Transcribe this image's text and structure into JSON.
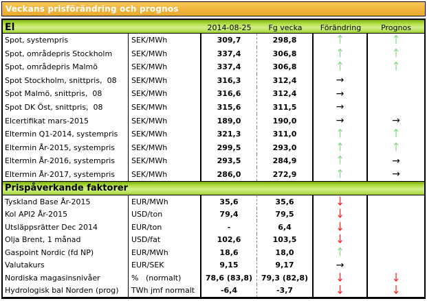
{
  "title": "Veckans prisförändring och prognos",
  "sections": [
    {
      "header": "El",
      "columns": [
        "2014-08-25",
        "Fg vecka",
        "Förändring",
        "Prognos"
      ],
      "rows": [
        {
          "label": "Spot, systempris",
          "unit": "SEK/MWh",
          "current": "309,7",
          "previous": "298,8",
          "change": "up",
          "forecast": "up"
        },
        {
          "label": "Spot, områdepris Stockholm",
          "unit": "SEK/MWh",
          "current": "337,4",
          "previous": "306,8",
          "change": "up",
          "forecast": "up"
        },
        {
          "label": "Spot, områdepris Malmö",
          "unit": "SEK/MWh",
          "current": "337,4",
          "previous": "306,8",
          "change": "up",
          "forecast": "up"
        },
        {
          "label": "Spot Stockholm, snittpris,  08",
          "unit": "SEK/MWh",
          "current": "316,3",
          "previous": "312,4",
          "change": "right",
          "forecast": "none"
        },
        {
          "label": "Spot Malmö, snittpris,  08",
          "unit": "SEK/MWh",
          "current": "316,6",
          "previous": "312,4",
          "change": "right",
          "forecast": "none"
        },
        {
          "label": "Spot DK Öst, snittpris,  08",
          "unit": "SEK/MWh",
          "current": "315,6",
          "previous": "311,5",
          "change": "right",
          "forecast": "none"
        },
        {
          "label": "Elcertifikat mars-2015",
          "unit": "SEK/MWh",
          "current": "189,0",
          "previous": "190,0",
          "change": "right",
          "forecast": "right"
        },
        {
          "label": "Eltermin Q1-2014, systempris",
          "unit": "SEK/MWh",
          "current": "321,3",
          "previous": "311,0",
          "change": "up",
          "forecast": "up"
        },
        {
          "label": "Eltermin År-2015, systempris",
          "unit": "SEK/MWh",
          "current": "299,5",
          "previous": "293,0",
          "change": "up",
          "forecast": "up"
        },
        {
          "label": "Eltermin År-2016, systempris",
          "unit": "SEK/MWh",
          "current": "293,5",
          "previous": "284,9",
          "change": "up",
          "forecast": "right"
        },
        {
          "label": "Eltermin År-2017, systempris",
          "unit": "SEK/MWh",
          "current": "286,0",
          "previous": "272,9",
          "change": "up",
          "forecast": "right"
        }
      ]
    },
    {
      "header": "Prispåverkande faktorer",
      "rows": [
        {
          "label": "Tyskland Base År-2015",
          "unit": "EUR/MWh",
          "current": "35,6",
          "previous": "35,6",
          "change": "down",
          "forecast": "none"
        },
        {
          "label": "Kol API2 År-2015",
          "unit": "USD/ton",
          "current": "79,4",
          "previous": "79,5",
          "change": "down",
          "forecast": "none"
        },
        {
          "label": "Utsläppsrätter Dec 2014",
          "unit": "EUR/ton",
          "current": "-",
          "previous": "6,4",
          "change": "down",
          "forecast": "none"
        },
        {
          "label": "Olja Brent, 1 månad",
          "unit": "USD/fat",
          "current": "102,6",
          "previous": "103,5",
          "change": "down",
          "forecast": "none"
        },
        {
          "label": "Gaspoint Nordic (fd NP)",
          "unit": "EUR/MWh",
          "current": "18,6",
          "previous": "18,0",
          "change": "up",
          "forecast": "none"
        },
        {
          "label": "Valutakurs",
          "unit": "EUR/SEK",
          "current": "9,15",
          "previous": "9,17",
          "change": "right",
          "forecast": "none"
        },
        {
          "label": "Nordiska magasinsnivåer",
          "unit": "%   (normalt)",
          "current": "78,6 (83,8)",
          "previous": "79,3 (82,8)",
          "change": "down",
          "forecast": "down"
        },
        {
          "label": "Hydrologisk bal Norden (prog)",
          "unit": "TWh jmf normalt",
          "current": "-6,4",
          "previous": "-3,7",
          "change": "down",
          "forecast": "down"
        }
      ]
    }
  ],
  "arrows": {
    "up": "↑",
    "down": "↓",
    "right": "→",
    "none": ""
  },
  "colors": {
    "title_bg": "#f0b43c",
    "title_text": "#ffffff",
    "band_green_light": "#d3ef8b",
    "band_green_dark": "#9ccd33",
    "up_arrow": "#8ad88a",
    "down_arrow": "#ff2020",
    "right_arrow": "#000000",
    "border": "#000000"
  }
}
